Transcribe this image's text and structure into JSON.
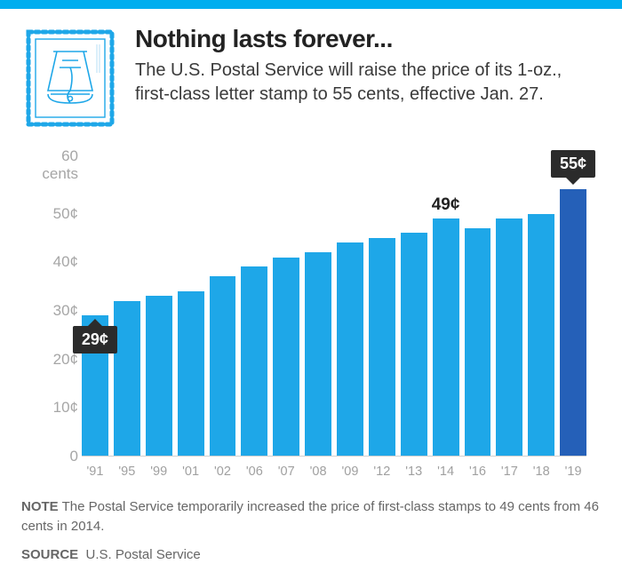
{
  "header": {
    "title": "Nothing lasts forever...",
    "subtitle": "The U.S. Postal Service will raise the price of its 1-oz., first-class letter stamp to 55 cents, effective Jan. 27.",
    "stamp_stroke": "#1ea7e8"
  },
  "chart": {
    "type": "bar",
    "ylabel": "60 cents",
    "ylim": [
      0,
      60
    ],
    "ytick_step": 10,
    "yticks": [
      0,
      10,
      20,
      30,
      40,
      50,
      60
    ],
    "grid_color": "#e0e0e0",
    "bar_color": "#1ea7e8",
    "highlight_color": "#2560b8",
    "background": "#ffffff",
    "categories": [
      "'91",
      "'95",
      "'99",
      "'01",
      "'02",
      "'06",
      "'07",
      "'08",
      "'09",
      "'12",
      "'13",
      "'14",
      "'16",
      "'17",
      "'18",
      "'19"
    ],
    "values": [
      29,
      32,
      33,
      34,
      37,
      39,
      41,
      42,
      44,
      45,
      46,
      49,
      47,
      49,
      50,
      55
    ],
    "highlight_index": 15,
    "callouts": [
      {
        "index": 0,
        "text": "29¢",
        "position": "below"
      },
      {
        "index": 15,
        "text": "55¢",
        "position": "above"
      }
    ],
    "annotations": [
      {
        "index": 11,
        "text": "49¢"
      }
    ],
    "xlabel_color": "#a0a0a0",
    "ylabel_color": "#a6a6a6"
  },
  "footer": {
    "note_label": "NOTE",
    "note_text": "The Postal Service temporarily increased the price of first-class stamps to 49 cents from 46 cents in 2014.",
    "source_label": "SOURCE",
    "source_text": "U.S. Postal Service"
  }
}
